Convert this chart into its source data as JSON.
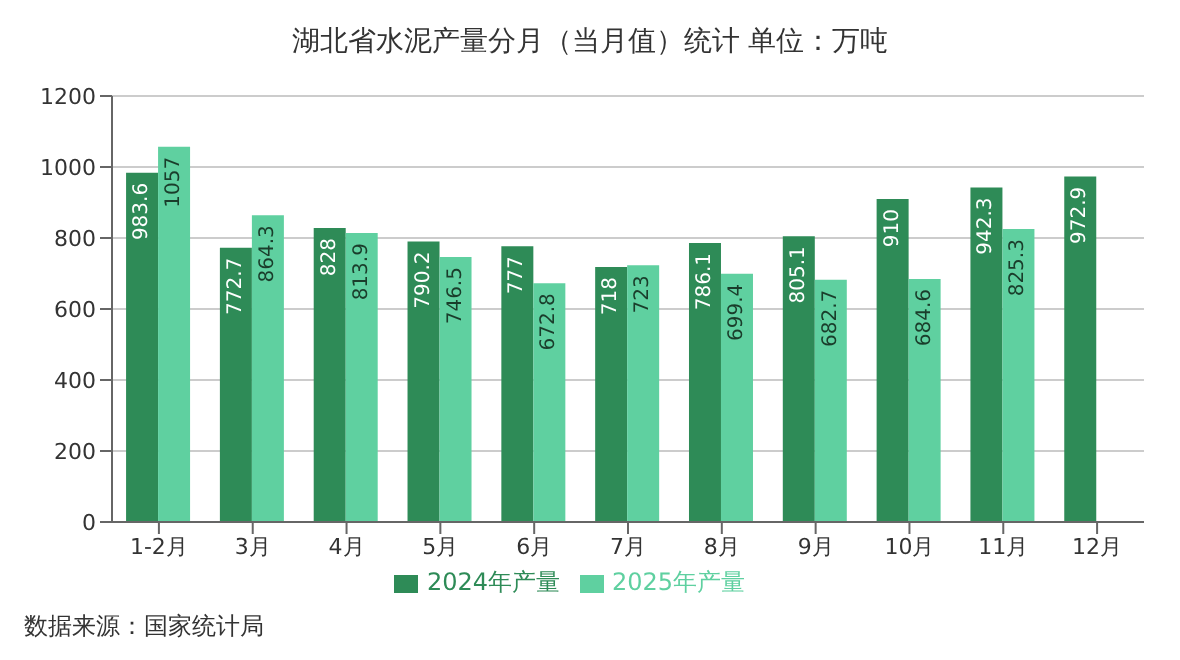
{
  "chart_data": {
    "type": "bar",
    "title": "湖北省水泥产量分月（当月值）统计 单位：万吨",
    "categories": [
      "1-2月",
      "3月",
      "4月",
      "5月",
      "6月",
      "7月",
      "8月",
      "9月",
      "10月",
      "11月",
      "12月"
    ],
    "series": [
      {
        "name": "2024年产量",
        "color": "#2e8b57",
        "values": [
          983.6,
          772.7,
          828,
          790.2,
          777,
          718,
          786.1,
          805.1,
          910,
          942.3,
          972.9
        ]
      },
      {
        "name": "2025年产量",
        "color": "#5fd0a0",
        "values": [
          1057,
          864.3,
          813.9,
          746.5,
          672.8,
          723,
          699.4,
          682.7,
          684.6,
          825.3,
          null
        ]
      }
    ],
    "ylim": [
      0,
      1200
    ],
    "yticks": [
      0,
      200,
      400,
      600,
      800,
      1000,
      1200
    ],
    "grid": "y",
    "legend": "bottom",
    "data_labels": true,
    "annotations": [
      "数据来源：国家统计局"
    ]
  }
}
